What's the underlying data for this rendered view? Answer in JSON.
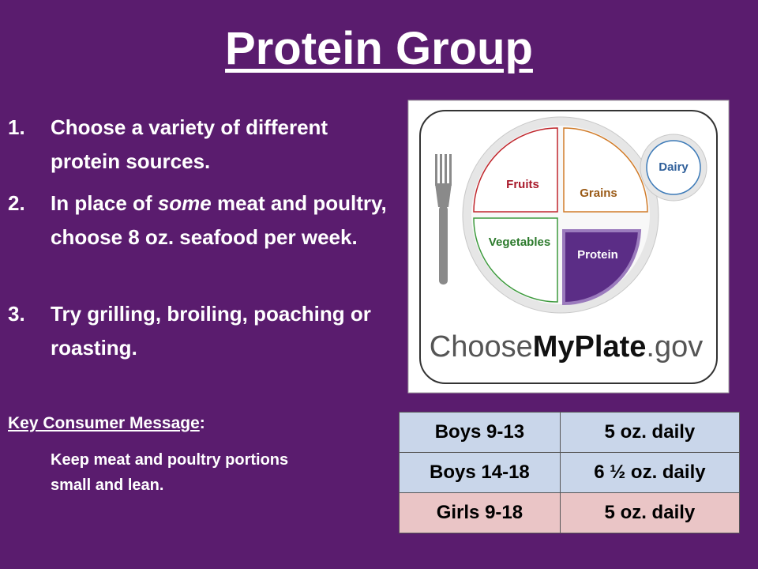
{
  "title": "Protein Group",
  "list": [
    {
      "number": "1.",
      "parts": [
        "Choose a variety of different protein sources."
      ]
    },
    {
      "number": "2.",
      "parts": [
        "In place of ",
        "some",
        " meat and poultry, choose 8 oz. seafood per week."
      ]
    },
    {
      "number": "3.",
      "parts": [
        "Try grilling, broiling, poaching or roasting."
      ]
    }
  ],
  "key_message": {
    "label": "Key Consumer Message",
    "colon": ":",
    "text": "Keep meat and poultry portions small and lean."
  },
  "plate": {
    "fruits": "Fruits",
    "grains": "Grains",
    "vegetables": "Vegetables",
    "protein": "Protein",
    "dairy": "Dairy",
    "brand": [
      "Choose",
      "MyPlate",
      ".gov"
    ]
  },
  "table": {
    "rows": [
      [
        "Boys 9-13",
        "5 oz. daily"
      ],
      [
        "Boys 14-18",
        "6 ½ oz. daily"
      ],
      [
        "Girls 9-18",
        "5 oz. daily"
      ]
    ]
  }
}
